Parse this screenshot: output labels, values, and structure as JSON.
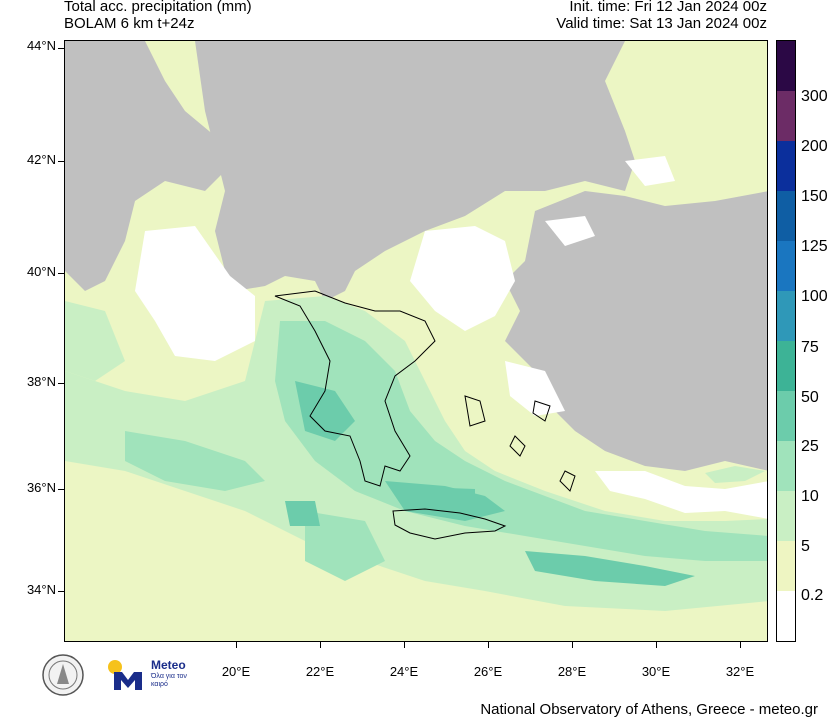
{
  "header": {
    "title_line1": "Total acc. precipitation (mm)",
    "title_line2": "BOLAM 6 km t+24z",
    "init_time": "Init. time: Fri 12 Jan 2024 00z",
    "valid_time": "Valid time: Sat 13 Jan 2024 00z"
  },
  "map": {
    "lat_ticks": [
      "44°N",
      "42°N",
      "40°N",
      "38°N",
      "36°N",
      "34°N"
    ],
    "lon_ticks": [
      "20°E",
      "22°E",
      "24°E",
      "26°E",
      "28°E",
      "30°E",
      "32°E"
    ],
    "extent": {
      "lon_min": 18.0,
      "lon_max": 32.6,
      "lat_min": 33.0,
      "lat_max": 44.0
    },
    "land_color": "#c0c0c0",
    "no_precip_color": "#ffffff"
  },
  "colorbar": {
    "labels": [
      "0.2",
      "5",
      "10",
      "25",
      "50",
      "75",
      "100",
      "125",
      "150",
      "200",
      "300"
    ],
    "colors": [
      "#ffffff",
      "#eef5c2",
      "#c9efc4",
      "#a0e3bb",
      "#6cccab",
      "#3db396",
      "#2f98b8",
      "#1a76c0",
      "#0f5ea4",
      "#0b2f9c",
      "#6c2c66",
      "#2b0845"
    ]
  },
  "footer": {
    "credit": "National Observatory of Athens, Greece - meteo.gr"
  },
  "logos": {
    "meteo_name": "Meteo",
    "meteo_tagline": "Όλα για τον καιρό",
    "meteo_blue": "#1a2d8a",
    "meteo_yellow": "#f6c21b"
  }
}
